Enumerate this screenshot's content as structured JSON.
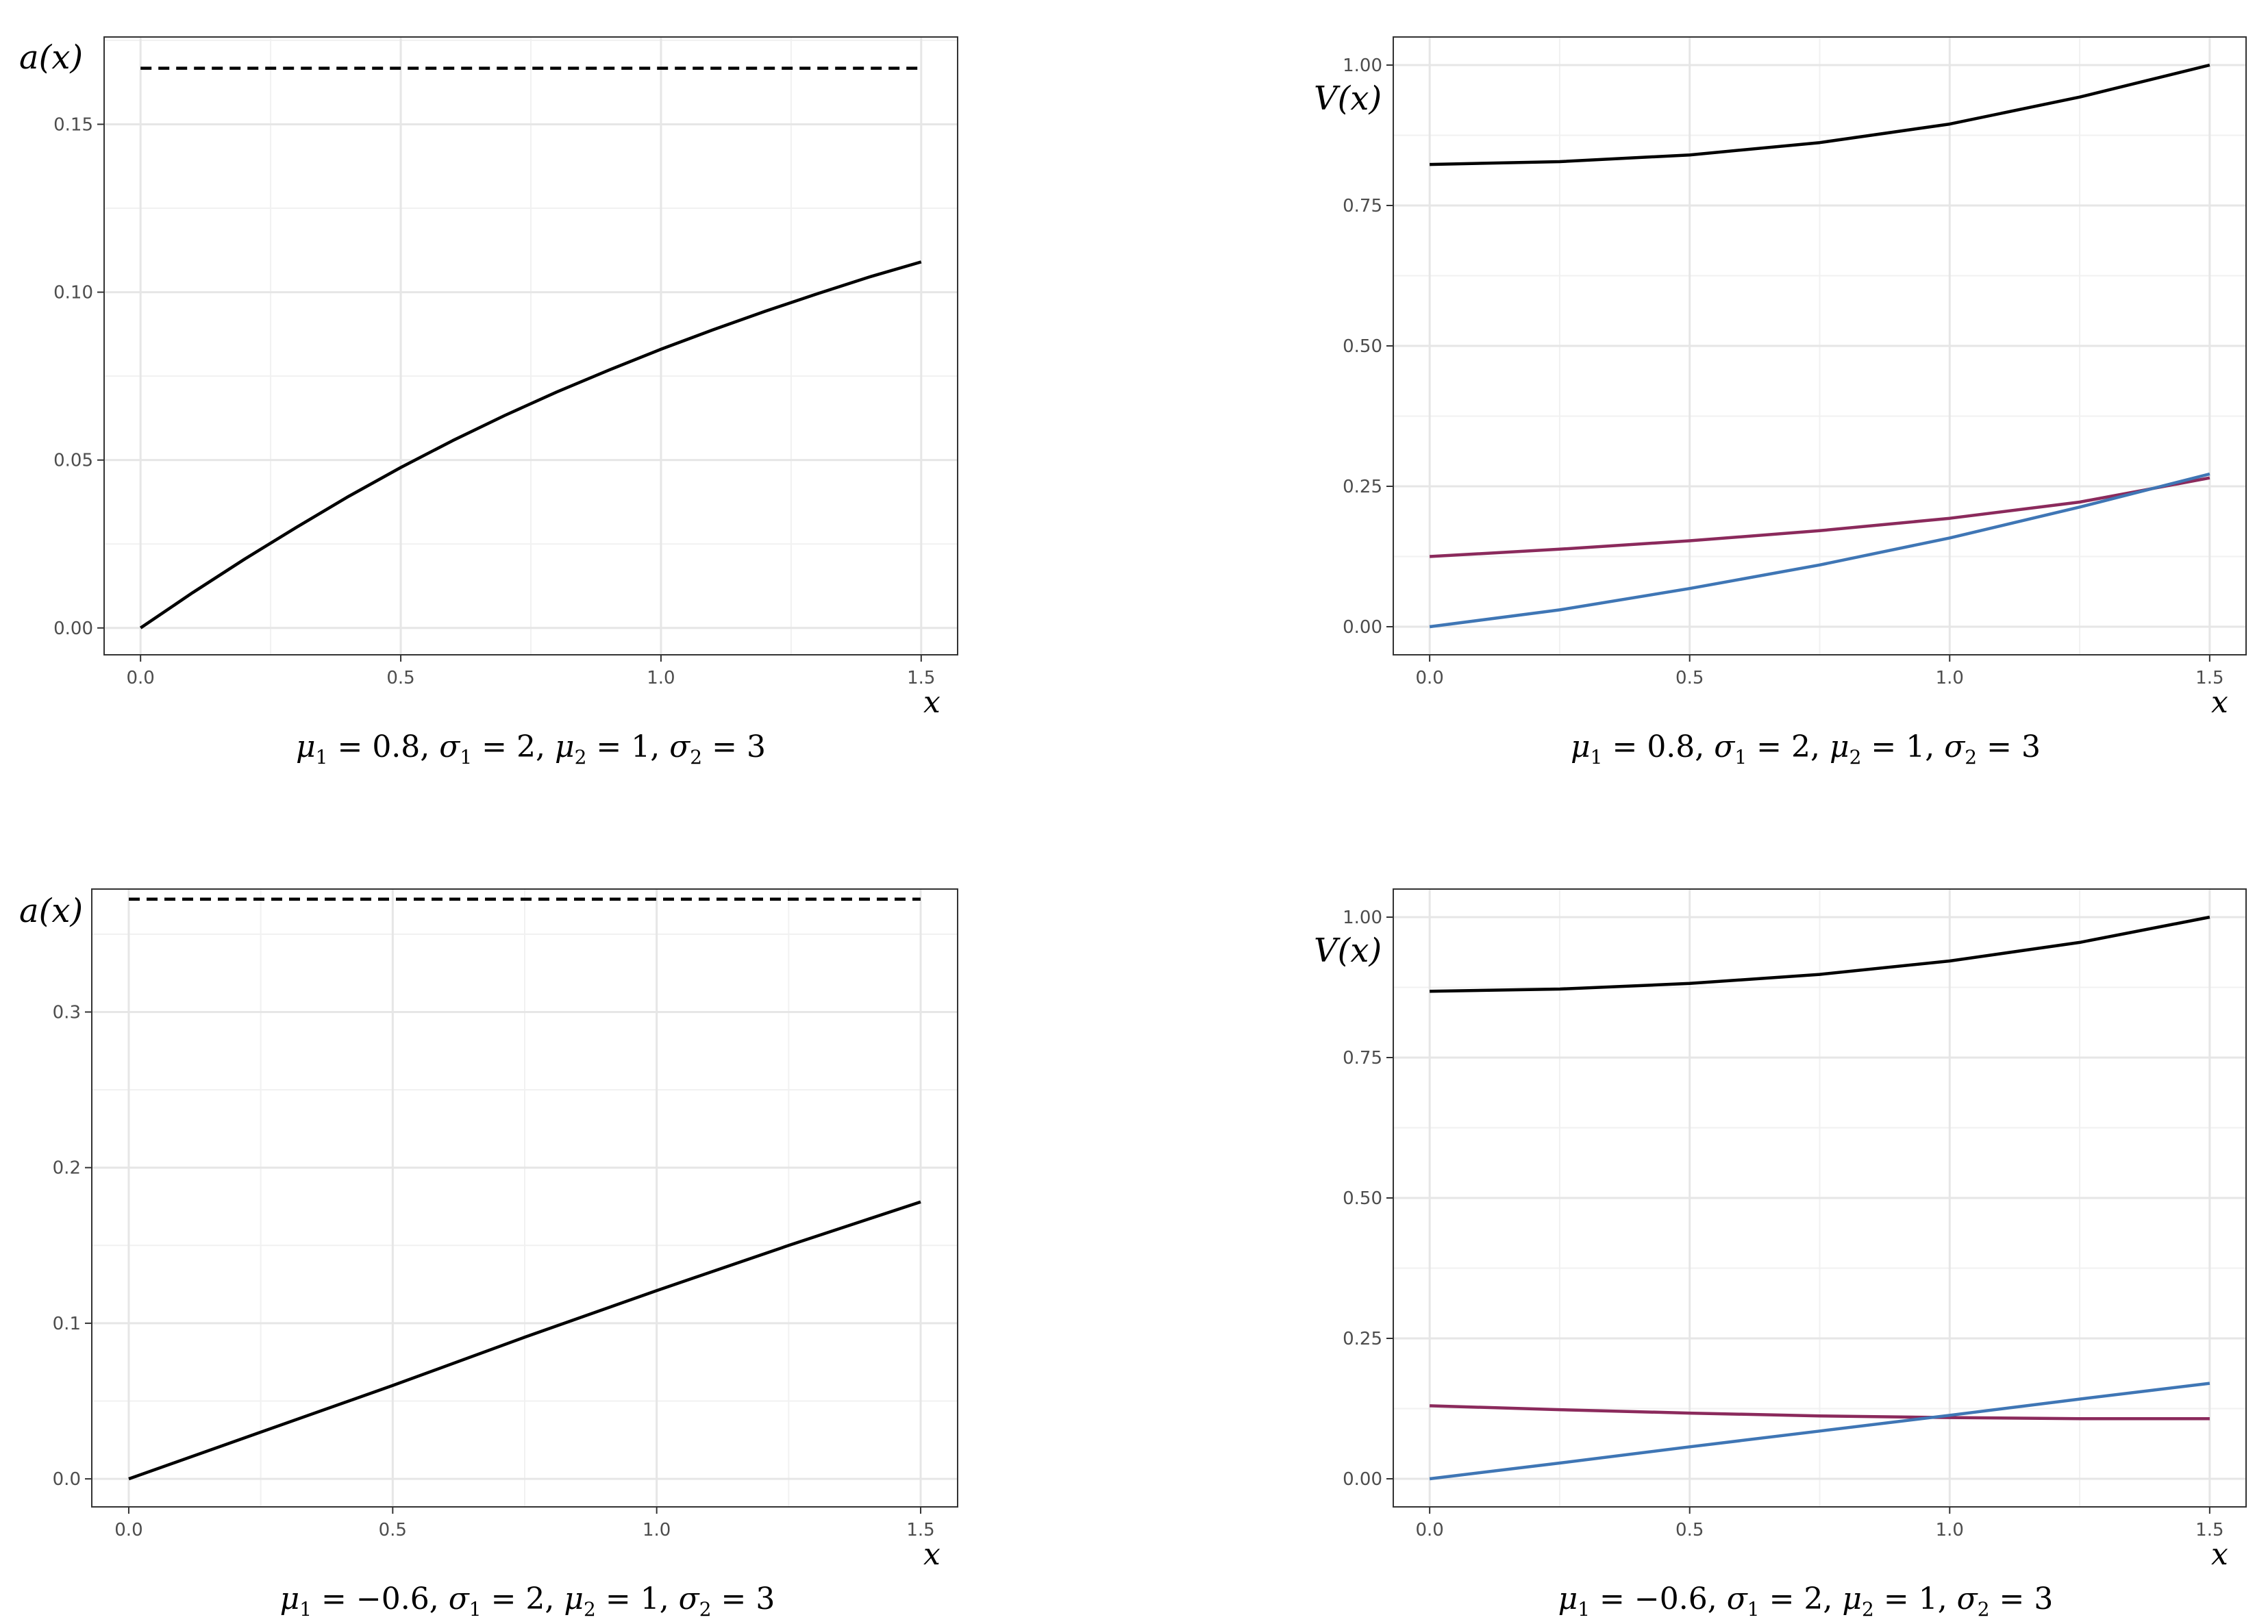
{
  "chart_data": [
    {
      "type": "line",
      "ylabel": "a(x)",
      "xlabel": "x",
      "caption": {
        "mu1": "0.8",
        "sigma1": "2",
        "mu2": "1",
        "sigma2": "3"
      },
      "xlim": [
        -0.07,
        1.57
      ],
      "ylim": [
        -0.008,
        0.176
      ],
      "xticks": [
        0.0,
        0.5,
        1.0,
        1.5
      ],
      "xtick_labels": [
        "0.0",
        "0.5",
        "1.0",
        "1.5"
      ],
      "yticks": [
        0.0,
        0.05,
        0.1,
        0.15
      ],
      "ytick_labels": [
        "0.00",
        "0.05",
        "0.10",
        "0.15"
      ],
      "series": [
        {
          "name": "a(x)",
          "color": "#000000",
          "style": "solid",
          "x": [
            0.0,
            0.1,
            0.2,
            0.3,
            0.4,
            0.5,
            0.6,
            0.7,
            0.8,
            0.9,
            1.0,
            1.1,
            1.2,
            1.3,
            1.4,
            1.5
          ],
          "y": [
            0.0,
            0.0105,
            0.0205,
            0.03,
            0.0392,
            0.0478,
            0.0558,
            0.0633,
            0.0703,
            0.0768,
            0.083,
            0.0888,
            0.0943,
            0.0995,
            0.1045,
            0.109
          ]
        },
        {
          "name": "bound",
          "color": "#000000",
          "style": "dashed",
          "x": [
            0.0,
            1.5
          ],
          "y": [
            0.1667,
            0.1667
          ]
        }
      ]
    },
    {
      "type": "line",
      "ylabel": "V(x)",
      "xlabel": "x",
      "caption": {
        "mu1": "0.8",
        "sigma1": "2",
        "mu2": "1",
        "sigma2": "3"
      },
      "xlim": [
        -0.07,
        1.57
      ],
      "ylim": [
        -0.05,
        1.05
      ],
      "xticks": [
        0.0,
        0.5,
        1.0,
        1.5
      ],
      "xtick_labels": [
        "0.0",
        "0.5",
        "1.0",
        "1.5"
      ],
      "yticks": [
        0.0,
        0.25,
        0.5,
        0.75,
        1.0
      ],
      "ytick_labels": [
        "0.00",
        "0.25",
        "0.50",
        "0.75",
        "1.00"
      ],
      "series": [
        {
          "name": "V(x)",
          "color": "#000000",
          "style": "solid",
          "x": [
            0.0,
            0.25,
            0.5,
            0.75,
            1.0,
            1.25,
            1.5
          ],
          "y": [
            0.823,
            0.828,
            0.84,
            0.862,
            0.895,
            0.943,
            1.0
          ]
        },
        {
          "name": "curve-purple",
          "color": "#8b2a5c",
          "style": "solid",
          "x": [
            0.0,
            0.25,
            0.5,
            0.75,
            1.0,
            1.25,
            1.5
          ],
          "y": [
            0.125,
            0.138,
            0.153,
            0.171,
            0.193,
            0.222,
            0.265
          ]
        },
        {
          "name": "curve-blue",
          "color": "#3f76b5",
          "style": "solid",
          "x": [
            0.0,
            0.25,
            0.5,
            0.75,
            1.0,
            1.25,
            1.5
          ],
          "y": [
            0.0,
            0.03,
            0.068,
            0.11,
            0.158,
            0.213,
            0.272
          ]
        }
      ]
    },
    {
      "type": "line",
      "ylabel": "a(x)",
      "xlabel": "x",
      "caption": {
        "mu1": "−0.6",
        "sigma1": "2",
        "mu2": "1",
        "sigma2": "3"
      },
      "xlim": [
        -0.07,
        1.57
      ],
      "ylim": [
        -0.018,
        0.379
      ],
      "xticks": [
        0.0,
        0.5,
        1.0,
        1.5
      ],
      "xtick_labels": [
        "0.0",
        "0.5",
        "1.0",
        "1.5"
      ],
      "yticks": [
        0.0,
        0.1,
        0.2,
        0.3
      ],
      "ytick_labels": [
        "0.0",
        "0.1",
        "0.2",
        "0.3"
      ],
      "series": [
        {
          "name": "a(x)",
          "color": "#000000",
          "style": "solid",
          "x": [
            0.0,
            0.25,
            0.5,
            0.75,
            1.0,
            1.25,
            1.5
          ],
          "y": [
            0.0,
            0.03,
            0.06,
            0.091,
            0.121,
            0.15,
            0.178
          ]
        },
        {
          "name": "bound",
          "color": "#000000",
          "style": "dashed",
          "x": [
            0.0,
            1.5
          ],
          "y": [
            0.3725,
            0.3725
          ]
        }
      ]
    },
    {
      "type": "line",
      "ylabel": "V(x)",
      "xlabel": "x",
      "caption": {
        "mu1": "−0.6",
        "sigma1": "2",
        "mu2": "1",
        "sigma2": "3"
      },
      "xlim": [
        -0.07,
        1.57
      ],
      "ylim": [
        -0.05,
        1.05
      ],
      "xticks": [
        0.0,
        0.5,
        1.0,
        1.5
      ],
      "xtick_labels": [
        "0.0",
        "0.5",
        "1.0",
        "1.5"
      ],
      "yticks": [
        0.0,
        0.25,
        0.5,
        0.75,
        1.0
      ],
      "ytick_labels": [
        "0.00",
        "0.25",
        "0.50",
        "0.75",
        "1.00"
      ],
      "series": [
        {
          "name": "V(x)",
          "color": "#000000",
          "style": "solid",
          "x": [
            0.0,
            0.25,
            0.5,
            0.75,
            1.0,
            1.25,
            1.5
          ],
          "y": [
            0.868,
            0.872,
            0.882,
            0.898,
            0.922,
            0.955,
            1.0
          ]
        },
        {
          "name": "curve-purple",
          "color": "#8b2a5c",
          "style": "solid",
          "x": [
            0.0,
            0.25,
            0.5,
            0.75,
            1.0,
            1.25,
            1.5
          ],
          "y": [
            0.13,
            0.123,
            0.117,
            0.112,
            0.109,
            0.107,
            0.107
          ]
        },
        {
          "name": "curve-blue",
          "color": "#3f76b5",
          "style": "solid",
          "x": [
            0.0,
            0.25,
            0.5,
            0.75,
            1.0,
            1.25,
            1.5
          ],
          "y": [
            0.0,
            0.028,
            0.057,
            0.085,
            0.113,
            0.142,
            0.17
          ]
        }
      ]
    }
  ]
}
